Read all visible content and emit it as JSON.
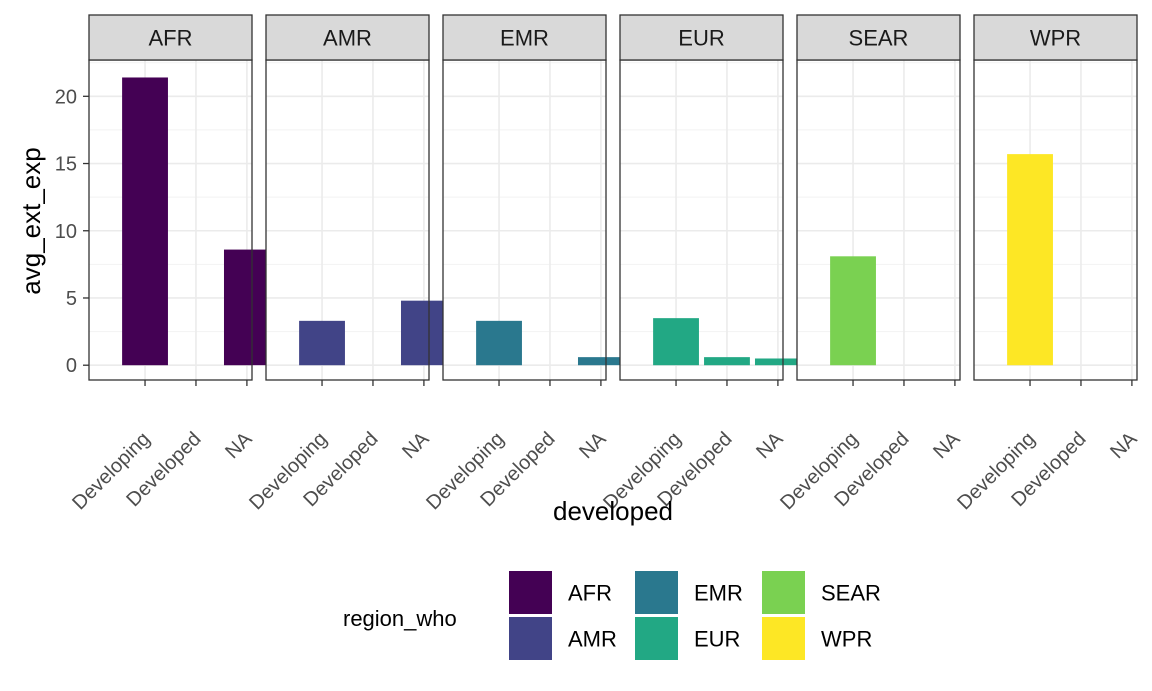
{
  "chart_data": {
    "type": "bar",
    "facet_variable": "region_who",
    "panels": [
      "AFR",
      "AMR",
      "EMR",
      "EUR",
      "SEAR",
      "WPR"
    ],
    "categories": [
      "Developing",
      "Developed",
      "NA"
    ],
    "series": [
      {
        "name": "AFR",
        "color": "#440154",
        "values": [
          21.4,
          null,
          8.6
        ]
      },
      {
        "name": "AMR",
        "color": "#414487",
        "values": [
          3.3,
          null,
          4.8
        ]
      },
      {
        "name": "EMR",
        "color": "#2A788E",
        "values": [
          3.3,
          null,
          0.6
        ]
      },
      {
        "name": "EUR",
        "color": "#22A884",
        "values": [
          3.5,
          0.6,
          0.5
        ]
      },
      {
        "name": "SEAR",
        "color": "#7AD151",
        "values": [
          8.1,
          null,
          null
        ]
      },
      {
        "name": "WPR",
        "color": "#FDE725",
        "values": [
          15.7,
          null,
          null
        ]
      }
    ],
    "xlabel": "developed",
    "ylabel": "avg_ext_exp",
    "ylim": [
      -1.1,
      22.7
    ],
    "yticks": [
      0,
      5,
      10,
      15,
      20
    ],
    "grid": true,
    "theme": "bw",
    "legend": {
      "title": "region_who",
      "position": "bottom",
      "entries": [
        "AFR",
        "AMR",
        "EMR",
        "EUR",
        "SEAR",
        "WPR"
      ]
    }
  }
}
